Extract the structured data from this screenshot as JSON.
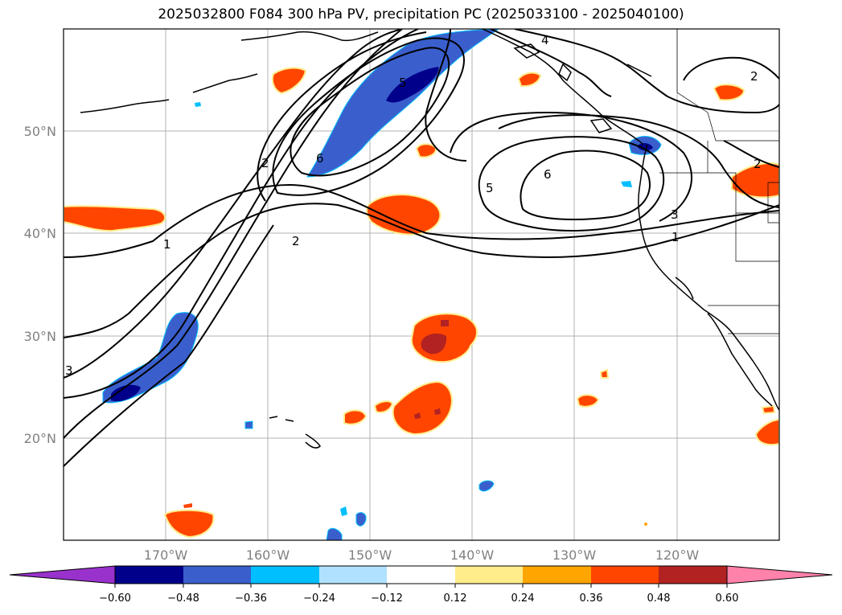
{
  "title": "2025032800 F084 300 hPa PV, precipitation PC (2025033100 - 2025040100)",
  "lat_labels": [
    "50°N",
    "40°N",
    "30°N",
    "20°N"
  ],
  "lon_labels": [
    "170°W",
    "160°W",
    "150°W",
    "140°W",
    "130°W",
    "120°W"
  ],
  "colorbar": {
    "colors": [
      "#9932cc",
      "#00008b",
      "#3a5fcd",
      "#00bfff",
      "#b0e2ff",
      "#ffffff",
      "#ffec8b",
      "#ffa500",
      "#ff4500",
      "#b22222",
      "#ff82ab"
    ],
    "tick_labels": [
      "−0.60",
      "−0.48",
      "−0.36",
      "−0.24",
      "−0.12",
      "0.12",
      "0.24",
      "0.36",
      "0.48",
      "0.60"
    ]
  },
  "contour_labels": [
    "1",
    "2",
    "6",
    "5",
    "4",
    "5",
    "6",
    "2",
    "3",
    "1",
    "2",
    "2",
    "1",
    "3"
  ]
}
